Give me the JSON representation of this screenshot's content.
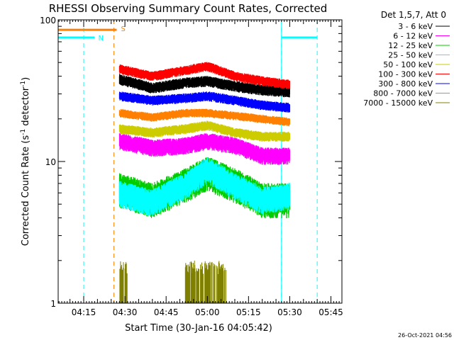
{
  "chart_data": {
    "type": "line",
    "title": "RHESSI Observing Summary Count Rates, Corrected",
    "xlabel": "Start Time (30-Jan-16 04:05:42)",
    "ylabel_main": "Corrected Count Rate (s",
    "ylabel_sup1": "-1",
    "ylabel_mid": " detector",
    "ylabel_sup2": "-1",
    "ylabel_end": ")",
    "yscale": "log",
    "ylim": [
      1,
      100
    ],
    "xlim": [
      "04:05:42",
      "05:49:00"
    ],
    "x_ticks": [
      "04:15",
      "04:30",
      "04:45",
      "05:00",
      "05:15",
      "05:30",
      "05:45"
    ],
    "y_ticks": [
      "1",
      "10",
      "100"
    ],
    "legend_title": "Det 1,5,7, Att 0",
    "legend_position": "top-right",
    "timestamp": "26-Oct-2021 04:56",
    "series": [
      {
        "name": "3 - 6 keV",
        "color": "#000000",
        "times": [
          "04:28",
          "04:40",
          "04:52",
          "05:00",
          "05:10",
          "05:20",
          "05:30"
        ],
        "values": [
          38,
          33,
          36,
          37,
          34,
          32,
          31
        ]
      },
      {
        "name": "6 - 12 keV",
        "color": "#ff00ff",
        "times": [
          "04:28",
          "04:40",
          "04:52",
          "05:00",
          "05:10",
          "05:20",
          "05:30"
        ],
        "values": [
          14,
          12.5,
          13,
          14,
          13,
          11,
          11
        ]
      },
      {
        "name": "12 - 25 keV",
        "color": "#00cc00",
        "times": [
          "04:28",
          "04:40",
          "04:52",
          "05:00",
          "05:10",
          "05:20",
          "05:30"
        ],
        "values": [
          6.5,
          5.5,
          7,
          8.5,
          7,
          5.5,
          5.5
        ]
      },
      {
        "name": "25 - 50 keV",
        "color": "#00ffff",
        "times": [
          "04:28",
          "04:40",
          "04:52",
          "05:00",
          "05:10",
          "05:20",
          "05:30"
        ],
        "values": [
          6,
          5.2,
          6.8,
          8.8,
          6.8,
          5.4,
          5.8
        ]
      },
      {
        "name": "50 - 100 keV",
        "color": "#cccc00",
        "times": [
          "04:28",
          "04:40",
          "04:52",
          "05:00",
          "05:10",
          "05:20",
          "05:30"
        ],
        "values": [
          17,
          16,
          17,
          18,
          16,
          15,
          15
        ]
      },
      {
        "name": "100 - 300 keV",
        "color": "#ff0000",
        "times": [
          "04:28",
          "04:40",
          "04:52",
          "05:00",
          "05:10",
          "05:20",
          "05:30"
        ],
        "values": [
          45,
          40,
          44,
          47,
          40,
          37,
          35
        ]
      },
      {
        "name": "300 - 800 keV",
        "color": "#0000ff",
        "times": [
          "04:28",
          "04:40",
          "04:52",
          "05:00",
          "05:10",
          "05:20",
          "05:30"
        ],
        "values": [
          29,
          27,
          28,
          29,
          27,
          25,
          24
        ]
      },
      {
        "name": "800 - 7000 keV",
        "color": "#ff8000",
        "times": [
          "04:28",
          "04:40",
          "04:52",
          "05:00",
          "05:10",
          "05:20",
          "05:30"
        ],
        "values": [
          22,
          20.5,
          22,
          22,
          21,
          20,
          19
        ]
      },
      {
        "name": "7000 - 15000 keV",
        "color": "#808000",
        "times": [
          "04:28",
          "04:52",
          "05:00",
          "05:05"
        ],
        "values": [
          1.6,
          1.7,
          1.8,
          1.7
        ]
      }
    ],
    "attenuator_flag": {
      "label": "S",
      "color": "#ff8000",
      "start": "04:05:42",
      "end": "04:27:00",
      "value": 85
    },
    "night_flag": {
      "label": "N",
      "color": "#00ffff",
      "segments": [
        {
          "start": "04:05:42",
          "end": "04:19:00",
          "value": 75
        },
        {
          "start": "05:27:00",
          "end": "05:40:00",
          "value": 75
        }
      ]
    },
    "orbit_markers": [
      {
        "time": "04:15:00",
        "color": "#00ffff"
      },
      {
        "time": "04:26:00",
        "color": "#ff8000"
      },
      {
        "time": "05:27:00",
        "color": "#00ffff"
      },
      {
        "time": "05:40:00",
        "color": "#00ffff"
      }
    ]
  }
}
